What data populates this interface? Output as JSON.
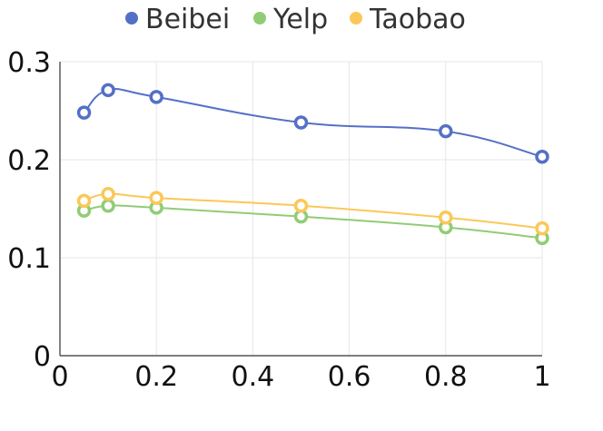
{
  "chart_data": {
    "type": "line",
    "x": [
      0.05,
      0.1,
      0.2,
      0.5,
      0.8,
      1
    ],
    "series": [
      {
        "name": "Beibei",
        "color": "#5470c6",
        "values": [
          0.248,
          0.271,
          0.264,
          0.238,
          0.229,
          0.203
        ]
      },
      {
        "name": "Yelp",
        "color": "#91cc75",
        "values": [
          0.148,
          0.153,
          0.151,
          0.142,
          0.131,
          0.12
        ]
      },
      {
        "name": "Taobao",
        "color": "#fac858",
        "values": [
          0.158,
          0.165,
          0.161,
          0.153,
          0.141,
          0.13
        ]
      }
    ],
    "xlim": [
      0,
      1
    ],
    "ylim": [
      0,
      0.3
    ],
    "xticks": [
      "0",
      "0.2",
      "0.4",
      "0.6",
      "0.8",
      "1"
    ],
    "yticks": [
      "0",
      "0.1",
      "0.2",
      "0.3"
    ],
    "grid": true,
    "legend_position": "top-center",
    "smooth": true,
    "marker": "hollow-circle"
  }
}
